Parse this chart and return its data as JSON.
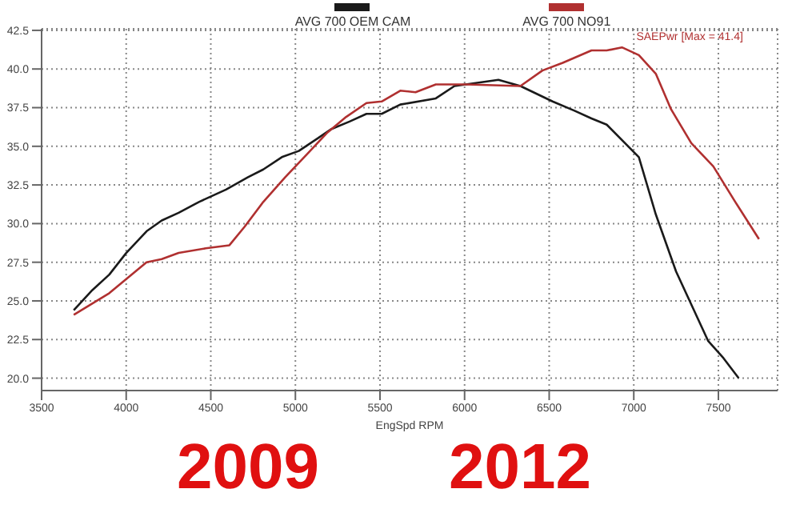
{
  "chart_data": {
    "type": "line",
    "xlabel": "EngSpd  RPM",
    "series": [
      {
        "name": "AVG 700 OEM CAM",
        "color": "#1a1a1a",
        "x": [
          3690,
          3800,
          3900,
          4000,
          4120,
          4210,
          4310,
          4430,
          4590,
          4720,
          4810,
          4920,
          5020,
          5130,
          5210,
          5320,
          5420,
          5510,
          5620,
          5830,
          5940,
          6200,
          6330,
          6520,
          6650,
          6750,
          6840,
          7030,
          7130,
          7250,
          7440,
          7530,
          7620
        ],
        "values": [
          24.4,
          25.7,
          26.7,
          28.1,
          29.5,
          30.2,
          30.7,
          31.4,
          32.2,
          33.0,
          33.5,
          34.3,
          34.7,
          35.5,
          36.1,
          36.6,
          37.1,
          37.1,
          37.7,
          38.1,
          38.9,
          39.3,
          38.9,
          37.9,
          37.3,
          36.8,
          36.4,
          34.3,
          30.6,
          26.9,
          22.4,
          21.3,
          20.0
        ]
      },
      {
        "name": "AVG 700 NO91",
        "color": "#b03030",
        "x": [
          3690,
          3900,
          4120,
          4210,
          4310,
          4470,
          4610,
          4700,
          4810,
          4940,
          5070,
          5190,
          5300,
          5420,
          5510,
          5620,
          5710,
          5830,
          6010,
          6330,
          6460,
          6580,
          6750,
          6840,
          6930,
          7030,
          7130,
          7220,
          7340,
          7470,
          7600,
          7740
        ],
        "values": [
          24.1,
          25.5,
          27.5,
          27.7,
          28.1,
          28.4,
          28.6,
          29.8,
          31.4,
          33.0,
          34.5,
          35.9,
          36.9,
          37.8,
          37.9,
          38.6,
          38.5,
          39.0,
          39.0,
          38.9,
          39.9,
          40.4,
          41.2,
          41.2,
          41.4,
          40.9,
          39.7,
          37.4,
          35.2,
          33.7,
          31.4,
          29.0
        ]
      }
    ],
    "xlim": [
      3500,
      7850
    ],
    "xticks": [
      3500,
      4000,
      4500,
      5000,
      5500,
      6000,
      6500,
      7000,
      7500
    ],
    "ylim": [
      19.2,
      42.6
    ],
    "yticks": [
      {
        "value": 20,
        "label": "20.0"
      },
      {
        "value": 22.5,
        "label": "22.5"
      },
      {
        "value": 25,
        "label": "25.0"
      },
      {
        "value": 27.5,
        "label": "27.5"
      },
      {
        "value": 30,
        "label": "30.0"
      },
      {
        "value": 32.5,
        "label": "32.5"
      },
      {
        "value": 35,
        "label": "35.0"
      },
      {
        "value": 37.5,
        "label": "37.5"
      },
      {
        "value": 40,
        "label": "40.0"
      },
      {
        "value": 42.5,
        "label": "42.5"
      }
    ],
    "grid": true,
    "legend": "top",
    "marker": "none",
    "line_style": "solid",
    "annotations": [
      {
        "text": "SAEPwr [Max = 41.4]",
        "x": 6930,
        "y": 41.4
      },
      "2009",
      "2012"
    ]
  }
}
